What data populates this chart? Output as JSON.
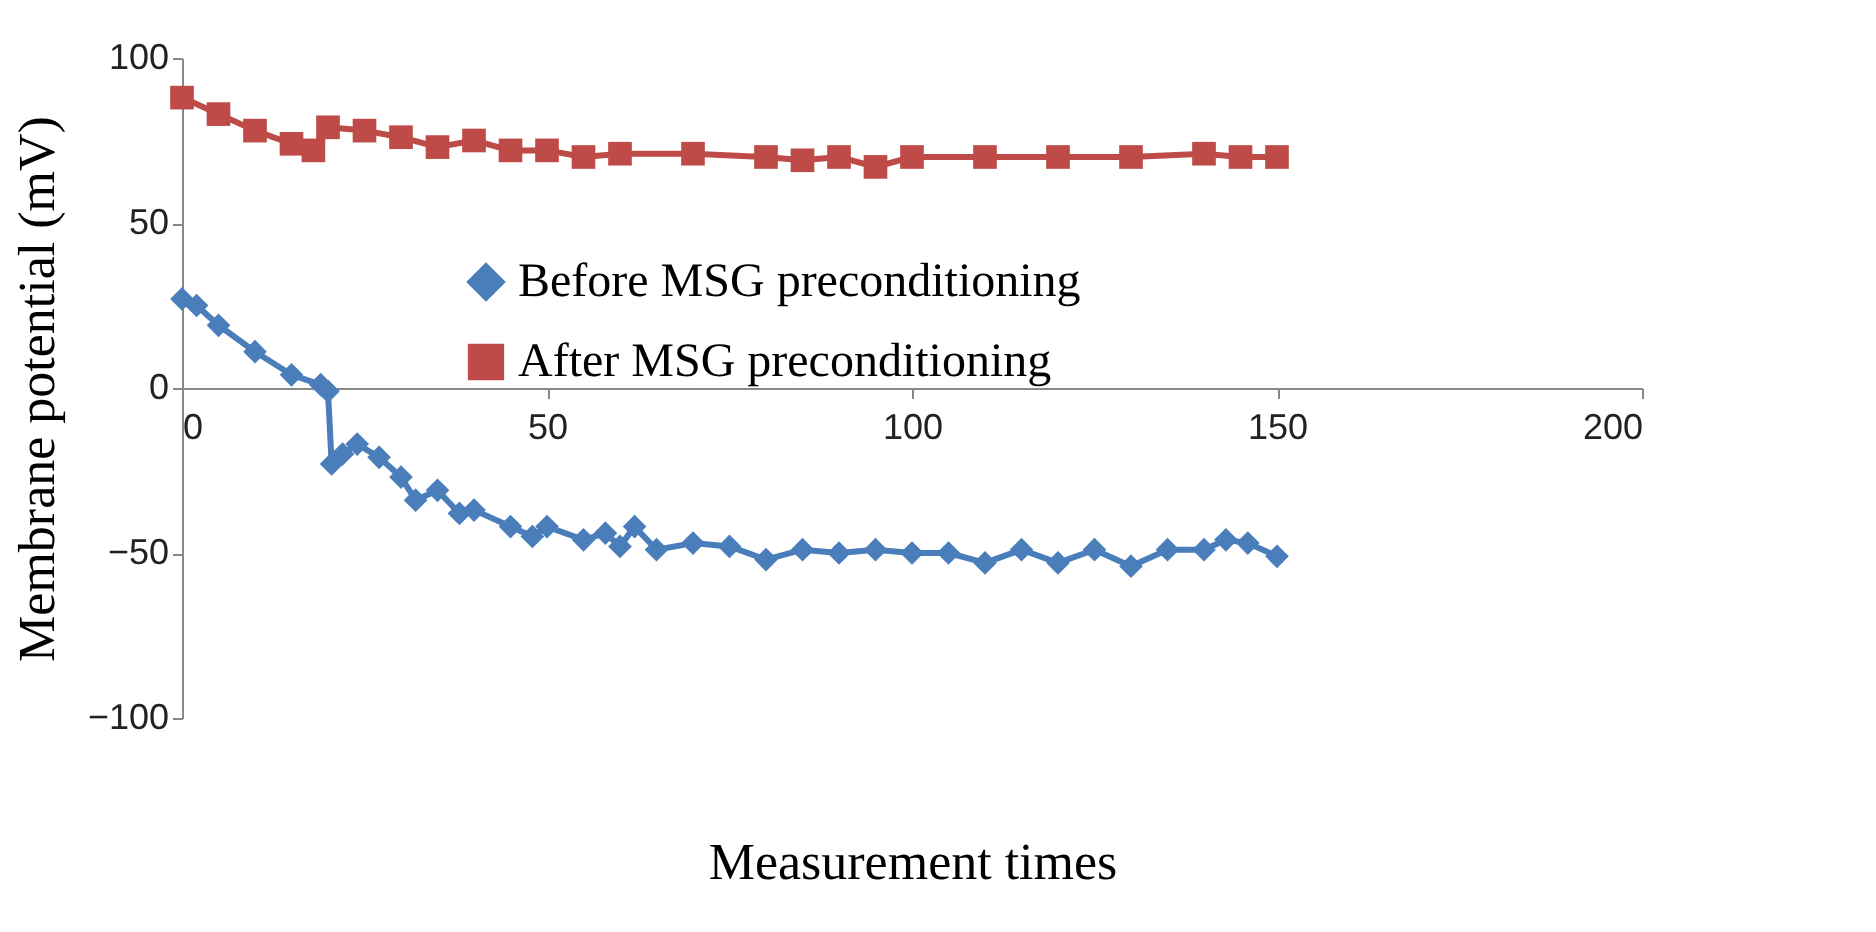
{
  "chart_data": {
    "type": "line",
    "xlabel": "Measurement times",
    "ylabel": "Membrane potential (mV)",
    "xlim": [
      0,
      200
    ],
    "xticks": [
      0,
      50,
      100,
      150,
      200
    ],
    "ylim": [
      -100,
      100
    ],
    "yticks": [
      -100,
      -50,
      0,
      50,
      100
    ],
    "grid": false,
    "legend": "top",
    "line_style": "solid",
    "series": [
      {
        "name": "Before MSG preconditioning",
        "color": "#4a7ebb",
        "marker": "diamond",
        "x": [
          0,
          2,
          5,
          10,
          15,
          19,
          20,
          20.5,
          22,
          24,
          27,
          30,
          32,
          35,
          38,
          40,
          45,
          48,
          50,
          55,
          58,
          60,
          62,
          65,
          70,
          75,
          80,
          85,
          90,
          95,
          100,
          105,
          110,
          115,
          120,
          125,
          130,
          135,
          140,
          143,
          146,
          150
        ],
        "values": [
          27,
          25,
          19,
          11,
          4,
          1,
          -1,
          -23,
          -20,
          -17,
          -21,
          -27,
          -34,
          -31,
          -38,
          -37,
          -42,
          -45,
          -42,
          -46,
          -44,
          -48,
          -42,
          -49,
          -47,
          -48,
          -52,
          -49,
          -50,
          -49,
          -50,
          -50,
          -53,
          -49,
          -53,
          -49,
          -54,
          -49,
          -49,
          -46,
          -47,
          -51
        ]
      },
      {
        "name": "After MSG preconditioning",
        "color": "#be4b48",
        "marker": "square",
        "x": [
          0,
          5,
          10,
          15,
          18,
          20,
          25,
          30,
          35,
          40,
          45,
          50,
          55,
          60,
          70,
          80,
          85,
          90,
          95,
          100,
          110,
          120,
          130,
          140,
          145,
          150
        ],
        "values": [
          88,
          83,
          78,
          74,
          72,
          79,
          78,
          76,
          73,
          75,
          72,
          72,
          70,
          71,
          71,
          70,
          69,
          70,
          67,
          70,
          70,
          70,
          70,
          71,
          70,
          70
        ]
      }
    ]
  }
}
